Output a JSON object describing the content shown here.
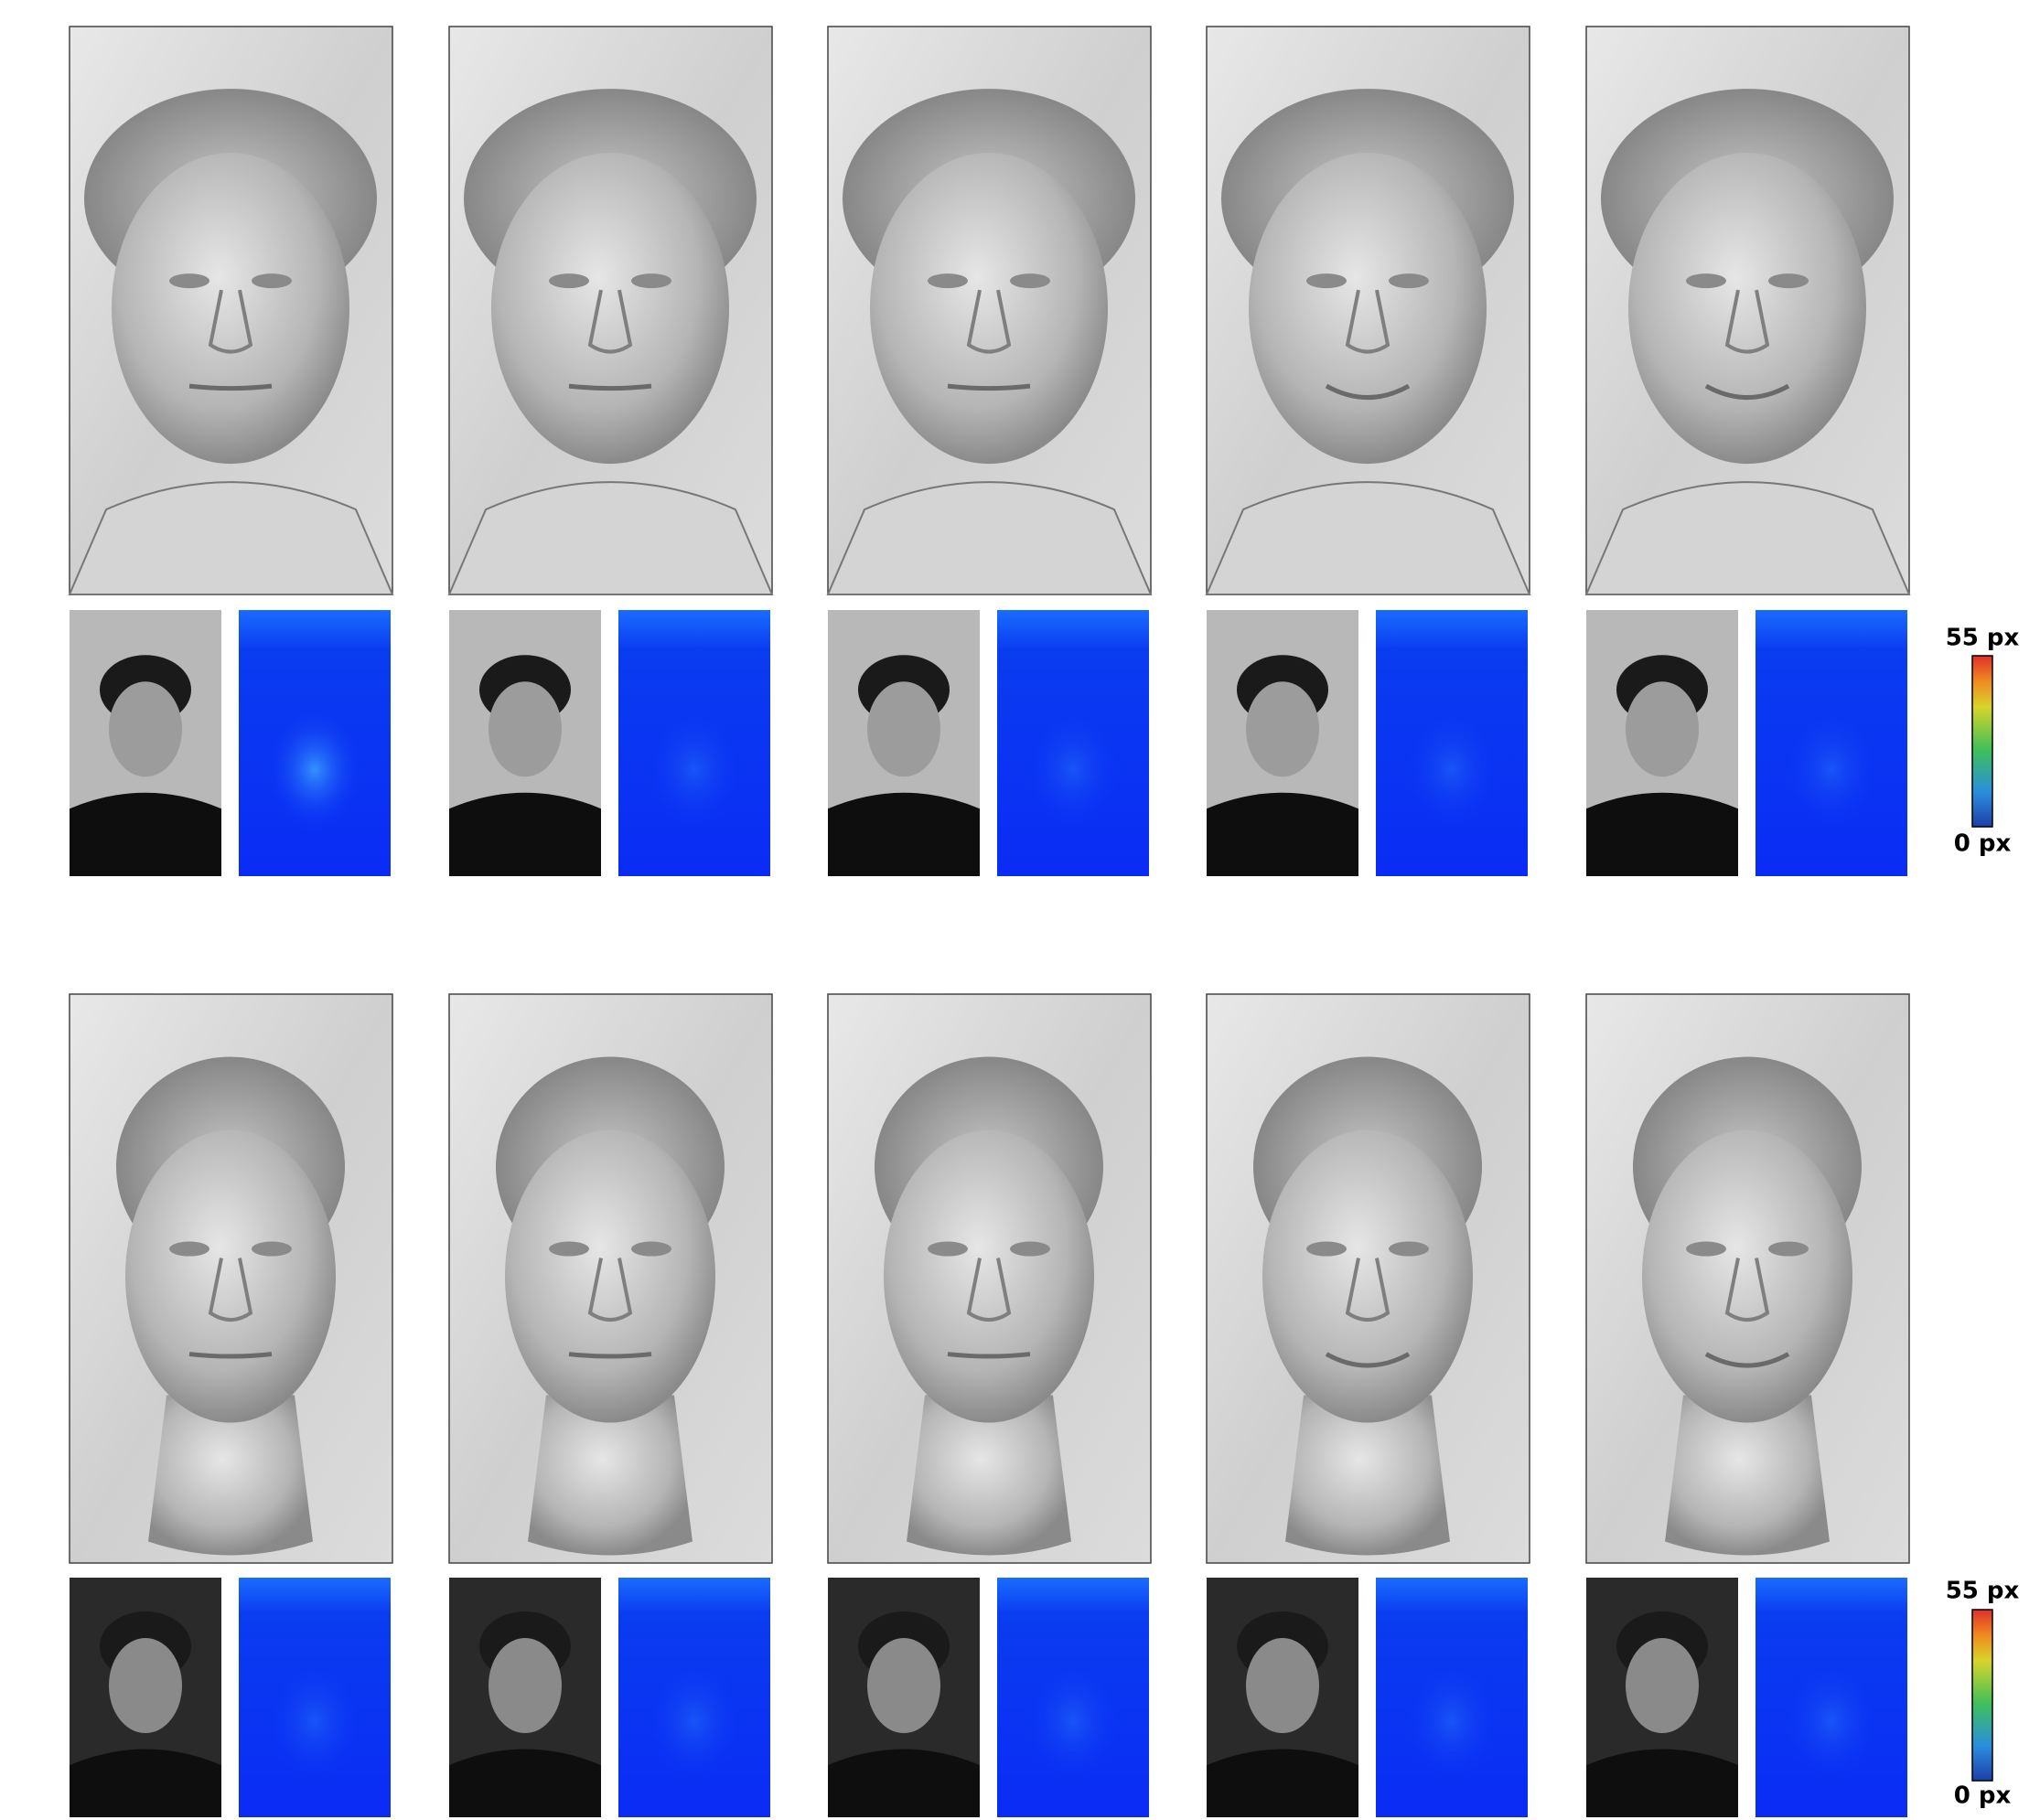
{
  "colorbars": [
    {
      "max_label": "55 px",
      "min_label": "0 px"
    },
    {
      "max_label": "55 px",
      "min_label": "0 px"
    }
  ]
}
